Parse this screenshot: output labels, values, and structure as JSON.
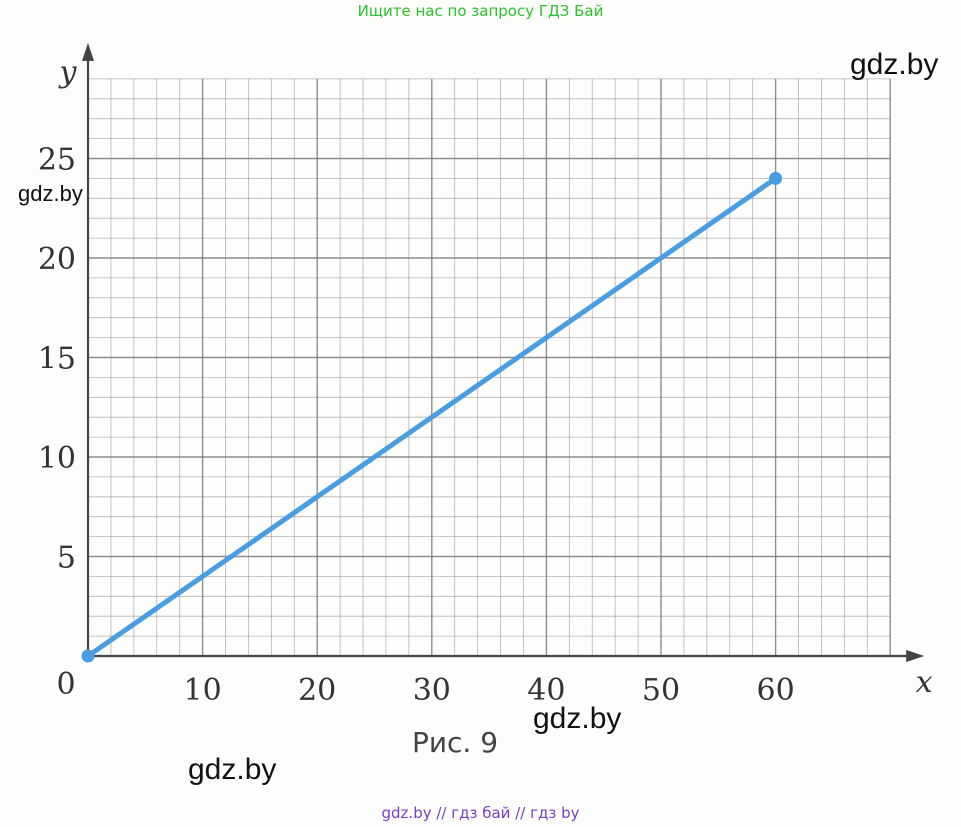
{
  "banner": {
    "top": "Ищите нас по запросу ГДЗ Бай",
    "bottom": "gdz.by  //  гдз бай  //  гдз by"
  },
  "watermarks": [
    "gdz.by",
    "gdz.by",
    "gdz.by",
    "gdz.by"
  ],
  "caption": "Рис. 9",
  "colors": {
    "line": "#4a9de0",
    "grid": "#7a7a7a",
    "axis": "#444444",
    "text": "#333333"
  },
  "chart_data": {
    "type": "line",
    "title": "",
    "xlabel": "x",
    "ylabel": "y",
    "origin_label": "0",
    "xlim": [
      0,
      70
    ],
    "ylim": [
      0,
      29
    ],
    "x_ticks": [
      "10",
      "20",
      "30",
      "40",
      "50",
      "60"
    ],
    "y_ticks": [
      "5",
      "10",
      "15",
      "20",
      "25"
    ],
    "grid": true,
    "minor_step": 2,
    "series": [
      {
        "name": "",
        "x": [
          0,
          60
        ],
        "y": [
          0,
          24
        ],
        "marker": "end-points"
      }
    ]
  }
}
